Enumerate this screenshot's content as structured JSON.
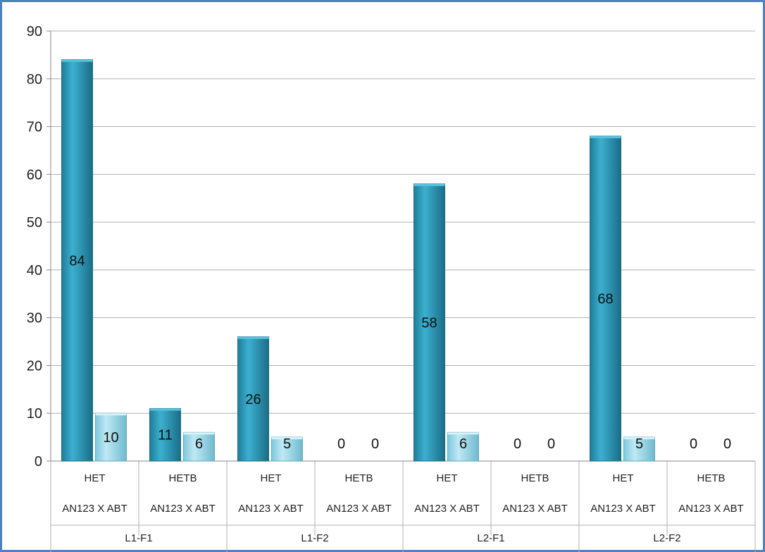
{
  "chart_data": {
    "type": "bar",
    "title": "",
    "xlabel": "",
    "ylabel": "",
    "ylim": [
      0,
      90
    ],
    "y_ticks": [
      0,
      10,
      20,
      30,
      40,
      50,
      60,
      70,
      80,
      90
    ],
    "grid": true,
    "legend": "none",
    "groups": [
      {
        "label": "L1-F1",
        "subgroups": [
          {
            "label": "HET",
            "sublabel": "AN123 X ABT",
            "values": [
              84,
              10
            ]
          },
          {
            "label": "HETB",
            "sublabel": "AN123 X ABT",
            "values": [
              11,
              6
            ]
          }
        ]
      },
      {
        "label": "L1-F2",
        "subgroups": [
          {
            "label": "HET",
            "sublabel": "AN123 X ABT",
            "values": [
              26,
              5
            ]
          },
          {
            "label": "HETB",
            "sublabel": "AN123 X ABT",
            "values": [
              0,
              0
            ]
          }
        ]
      },
      {
        "label": "L2-F1",
        "subgroups": [
          {
            "label": "HET",
            "sublabel": "AN123 X ABT",
            "values": [
              58,
              6
            ]
          },
          {
            "label": "HETB",
            "sublabel": "AN123 X ABT",
            "values": [
              0,
              0
            ]
          }
        ]
      },
      {
        "label": "L2-F2",
        "subgroups": [
          {
            "label": "HET",
            "sublabel": "AN123 X ABT",
            "values": [
              68,
              5
            ]
          },
          {
            "label": "HETB",
            "sublabel": "AN123 X ABT",
            "values": [
              0,
              0
            ]
          }
        ]
      }
    ],
    "series": [
      {
        "color": "#2a97b5"
      },
      {
        "color": "#8fd3e6"
      }
    ]
  }
}
